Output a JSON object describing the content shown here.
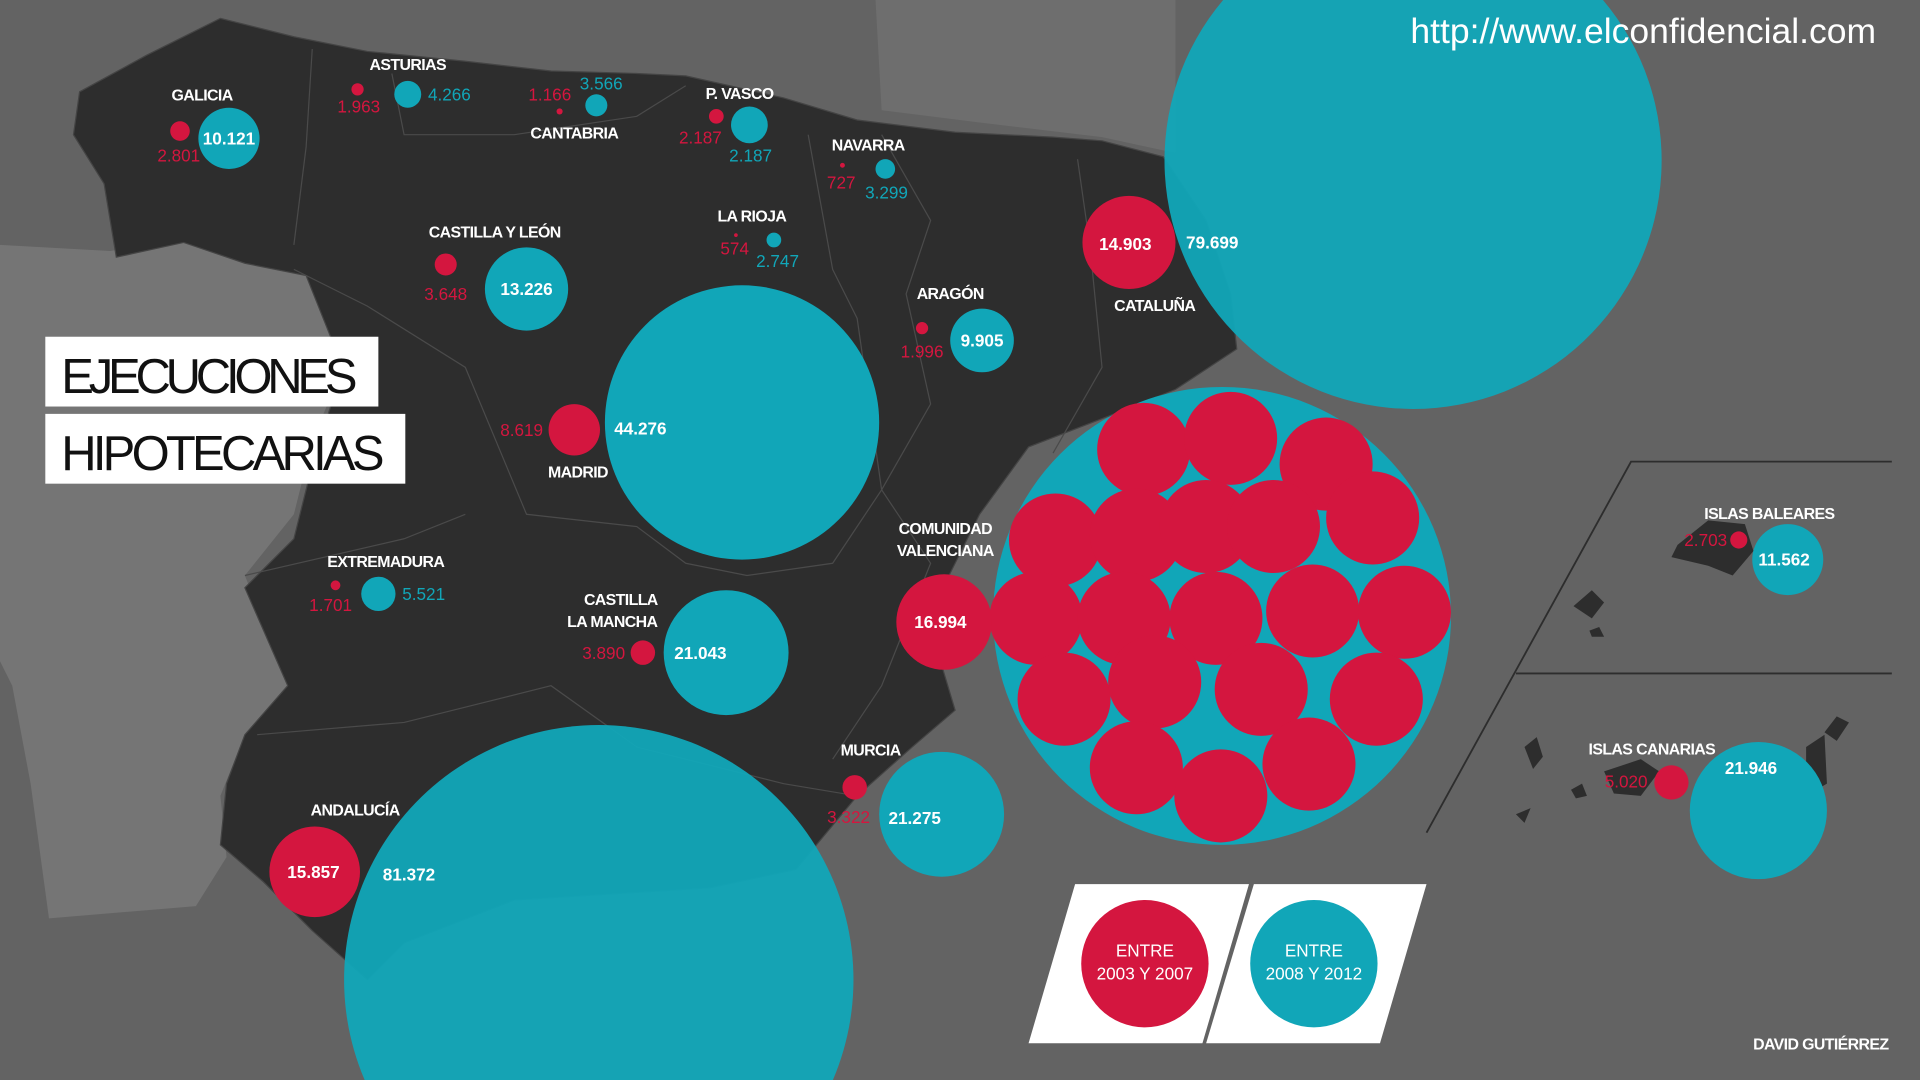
{
  "source_url": "http://www.elconfidencial.com",
  "title": {
    "line1": "EJECUCIONES",
    "line2": "HIPOTECARIAS"
  },
  "author": "DAVID GUTIÉRREZ",
  "legend": {
    "period1": {
      "line1": "ENTRE",
      "line2": "2003 Y 2007"
    },
    "period2": {
      "line1": "ENTRE",
      "line2": "2008 Y 2012"
    }
  },
  "colors": {
    "period1": "#d4163f",
    "period2": "#11a6b8",
    "land": "#2d2d2d",
    "sea": "#636363"
  },
  "regions": {
    "galicia": {
      "name": "GALICIA",
      "v1": "2.801",
      "v2": "10.121"
    },
    "asturias": {
      "name": "ASTURIAS",
      "v1": "1.963",
      "v2": "4.266"
    },
    "cantabria": {
      "name": "CANTABRIA",
      "v1": "1.166",
      "v2": "3.566"
    },
    "pvasco": {
      "name": "P. VASCO",
      "v1": "2.187",
      "v2": "2.187"
    },
    "navarra": {
      "name": "NAVARRA",
      "v1": "727",
      "v2": "3.299"
    },
    "larioja": {
      "name": "LA RIOJA",
      "v1": "574",
      "v2": "2.747"
    },
    "cyl": {
      "name": "CASTILLA Y LEÓN",
      "v1": "3.648",
      "v2": "13.226"
    },
    "aragon": {
      "name": "ARAGÓN",
      "v1": "1.996",
      "v2": "9.905"
    },
    "cataluna": {
      "name": "CATALUÑA",
      "v1": "14.903",
      "v2": "79.699"
    },
    "madrid": {
      "name": "MADRID",
      "v1": "8.619",
      "v2": "44.276"
    },
    "extremadura": {
      "name": "EXTREMADURA",
      "v1": "1.701",
      "v2": "5.521"
    },
    "clm": {
      "name1": "CASTILLA",
      "name2": "LA MANCHA",
      "v1": "3.890",
      "v2": "21.043"
    },
    "valenciana": {
      "name1": "COMUNIDAD",
      "name2": "VALENCIANA",
      "v1": "16.994"
    },
    "murcia": {
      "name": "MURCIA",
      "v1": "3.322",
      "v2": "21.275"
    },
    "andalucia": {
      "name": "ANDALUCÍA",
      "v1": "15.857",
      "v2": "81.372"
    },
    "baleares": {
      "name": "ISLAS BALEARES",
      "v1": "2.703",
      "v2": "11.562"
    },
    "canarias": {
      "name": "ISLAS CANARIAS",
      "v1": "5.020",
      "v2": "21.946"
    }
  }
}
